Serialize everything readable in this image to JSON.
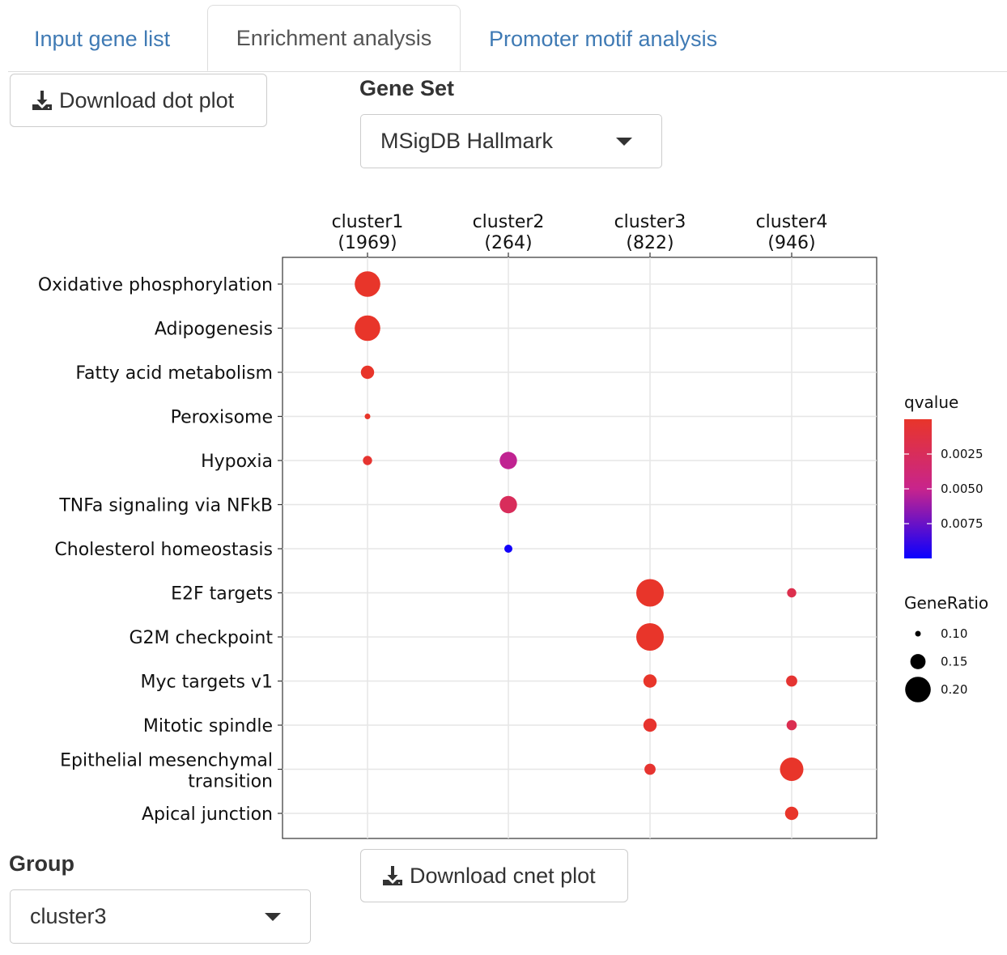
{
  "tabs": [
    {
      "label": "Input gene list",
      "active": false
    },
    {
      "label": "Enrichment analysis",
      "active": true
    },
    {
      "label": "Promoter motif analysis",
      "active": false
    }
  ],
  "buttons": {
    "download_dot": "Download dot plot",
    "download_cnet": "Download cnet plot",
    "download_icon": "download-icon"
  },
  "gene_set": {
    "label": "Gene Set",
    "value": "MSigDB Hallmark"
  },
  "group": {
    "label": "Group",
    "value": "cluster3"
  },
  "colors": {
    "accent_link": "#3f7ab4",
    "q_low": "#e8352a",
    "q_high": "#0a00ff"
  },
  "chart_data": {
    "type": "scatter",
    "title": "",
    "clusters": [
      {
        "name": "cluster1",
        "count": "(1969)"
      },
      {
        "name": "cluster2",
        "count": "(264)"
      },
      {
        "name": "cluster3",
        "count": "(822)"
      },
      {
        "name": "cluster4",
        "count": "(946)"
      }
    ],
    "terms": [
      [
        "Oxidative phosphorylation"
      ],
      [
        "Adipogenesis"
      ],
      [
        "Fatty acid metabolism"
      ],
      [
        "Peroxisome"
      ],
      [
        "Hypoxia"
      ],
      [
        "TNFa signaling via NFkB"
      ],
      [
        "Cholesterol homeostasis"
      ],
      [
        "E2F targets"
      ],
      [
        "G2M checkpoint"
      ],
      [
        "Myc targets v1"
      ],
      [
        "Mitotic spindle"
      ],
      [
        "Epithelial mesenchymal",
        "transition"
      ],
      [
        "Apical junction"
      ]
    ],
    "points": [
      {
        "cluster": 0,
        "term": 0,
        "gene_ratio": 0.2,
        "qvalue": 0.0
      },
      {
        "cluster": 0,
        "term": 1,
        "gene_ratio": 0.2,
        "qvalue": 0.0
      },
      {
        "cluster": 0,
        "term": 2,
        "gene_ratio": 0.14,
        "qvalue": 0.0
      },
      {
        "cluster": 0,
        "term": 3,
        "gene_ratio": 0.08,
        "qvalue": 0.0
      },
      {
        "cluster": 0,
        "term": 4,
        "gene_ratio": 0.12,
        "qvalue": 0.0003
      },
      {
        "cluster": 1,
        "term": 4,
        "gene_ratio": 0.16,
        "qvalue": 0.0052
      },
      {
        "cluster": 1,
        "term": 5,
        "gene_ratio": 0.16,
        "qvalue": 0.0025
      },
      {
        "cluster": 1,
        "term": 6,
        "gene_ratio": 0.115,
        "qvalue": 0.0098
      },
      {
        "cluster": 2,
        "term": 7,
        "gene_ratio": 0.21,
        "qvalue": 0.0
      },
      {
        "cluster": 2,
        "term": 8,
        "gene_ratio": 0.21,
        "qvalue": 0.0
      },
      {
        "cluster": 2,
        "term": 9,
        "gene_ratio": 0.14,
        "qvalue": 0.0
      },
      {
        "cluster": 2,
        "term": 10,
        "gene_ratio": 0.14,
        "qvalue": 0.0002
      },
      {
        "cluster": 2,
        "term": 11,
        "gene_ratio": 0.13,
        "qvalue": 0.0003
      },
      {
        "cluster": 3,
        "term": 7,
        "gene_ratio": 0.12,
        "qvalue": 0.0018
      },
      {
        "cluster": 3,
        "term": 9,
        "gene_ratio": 0.13,
        "qvalue": 0.0004
      },
      {
        "cluster": 3,
        "term": 10,
        "gene_ratio": 0.125,
        "qvalue": 0.002
      },
      {
        "cluster": 3,
        "term": 11,
        "gene_ratio": 0.19,
        "qvalue": 0.0
      },
      {
        "cluster": 3,
        "term": 12,
        "gene_ratio": 0.14,
        "qvalue": 0.0
      }
    ],
    "qvalue_range": [
      0,
      0.01
    ],
    "legend": {
      "color_title": "qvalue",
      "color_ticks": [
        {
          "value": 0.0025,
          "label": "0.0025"
        },
        {
          "value": 0.005,
          "label": "0.0050"
        },
        {
          "value": 0.0075,
          "label": "0.0075"
        }
      ],
      "size_title": "GeneRatio",
      "size_ticks": [
        {
          "value": 0.1,
          "label": "0.10"
        },
        {
          "value": 0.15,
          "label": "0.15"
        },
        {
          "value": 0.2,
          "label": "0.20"
        }
      ],
      "placement": "right"
    },
    "grid": true
  }
}
